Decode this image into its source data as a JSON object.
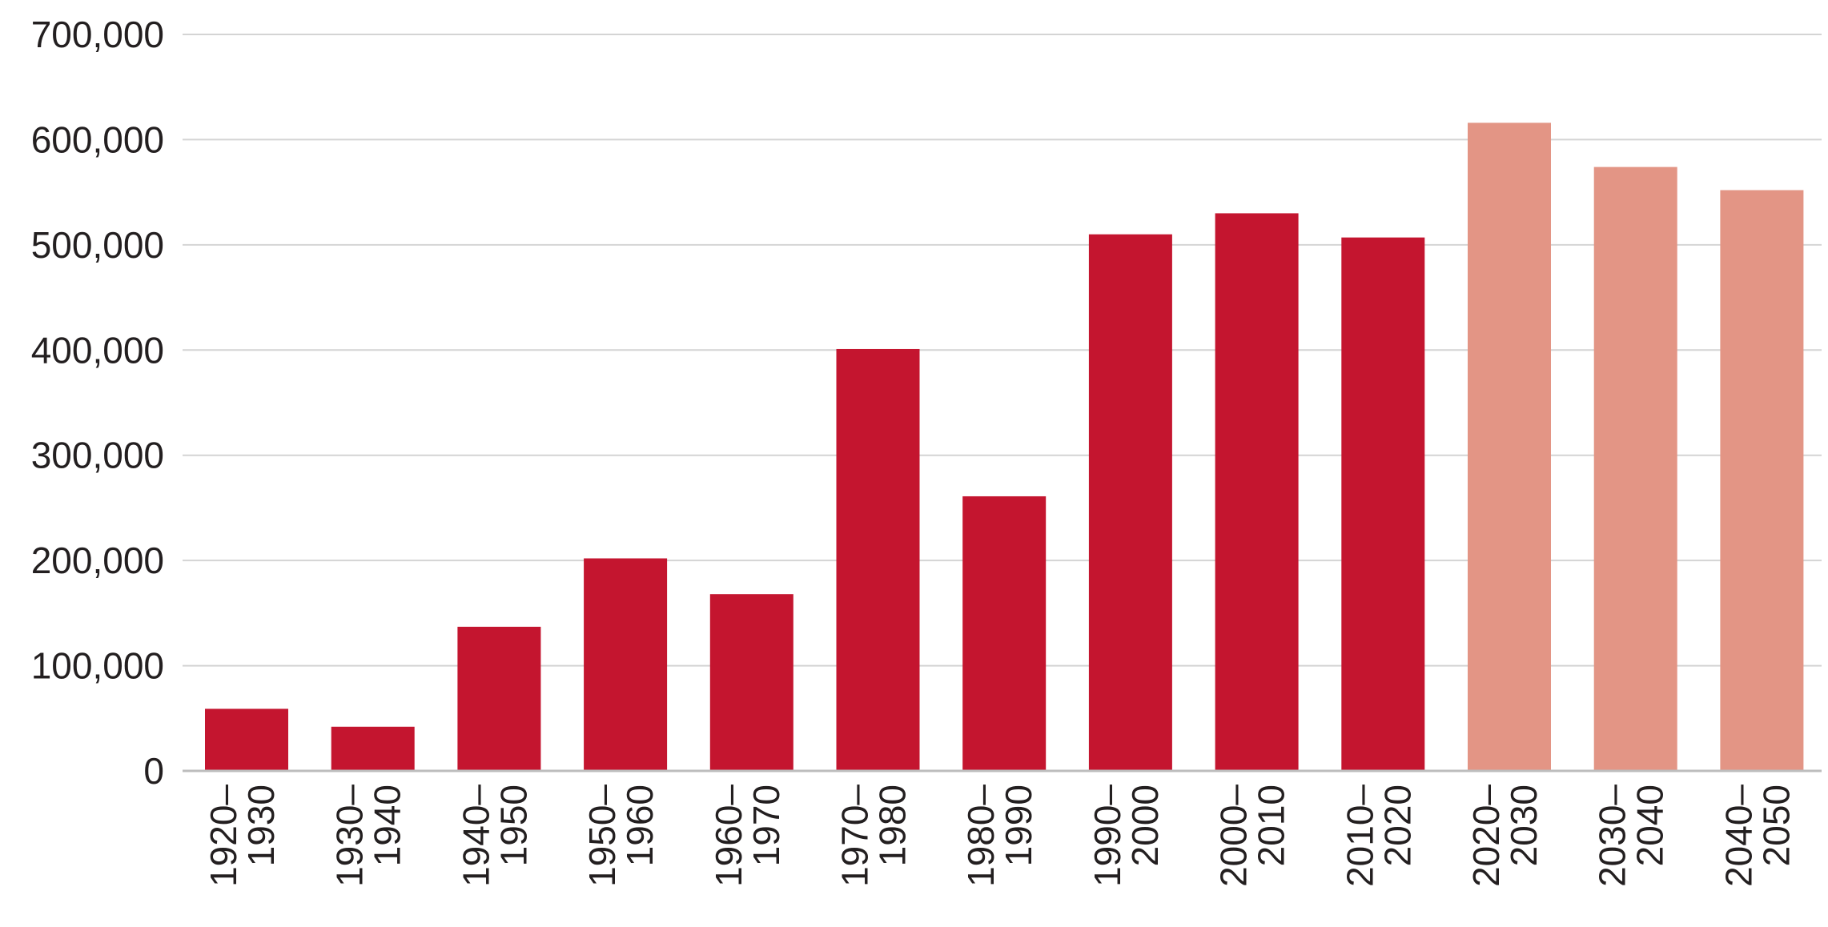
{
  "chart_data": {
    "type": "bar",
    "title": "",
    "xlabel": "",
    "ylabel": "",
    "ylim": [
      0,
      700000
    ],
    "yticks": [
      0,
      100000,
      200000,
      300000,
      400000,
      500000,
      600000,
      700000
    ],
    "ytick_labels": [
      "0",
      "100,000",
      "200,000",
      "300,000",
      "400,000",
      "500,000",
      "600,000",
      "700,000"
    ],
    "grid": "horizontal",
    "categories": [
      [
        "1920–",
        "1930"
      ],
      [
        "1930–",
        "1940"
      ],
      [
        "1940–",
        "1950"
      ],
      [
        "1950–",
        "1960"
      ],
      [
        "1960–",
        "1970"
      ],
      [
        "1970–",
        "1980"
      ],
      [
        "1980–",
        "1990"
      ],
      [
        "1990–",
        "2000"
      ],
      [
        "2000–",
        "2010"
      ],
      [
        "2010–",
        "2020"
      ],
      [
        "2020–",
        "2030"
      ],
      [
        "2030–",
        "2040"
      ],
      [
        "2040–",
        "2050"
      ]
    ],
    "values": [
      59000,
      42000,
      137000,
      202000,
      168000,
      401000,
      261000,
      510000,
      530000,
      507000,
      616000,
      574000,
      552000
    ],
    "bar_colors": [
      "#c4152f",
      "#c4152f",
      "#c4152f",
      "#c4152f",
      "#c4152f",
      "#c4152f",
      "#c4152f",
      "#c4152f",
      "#c4152f",
      "#c4152f",
      "#e39585",
      "#e39585",
      "#e39585"
    ]
  }
}
